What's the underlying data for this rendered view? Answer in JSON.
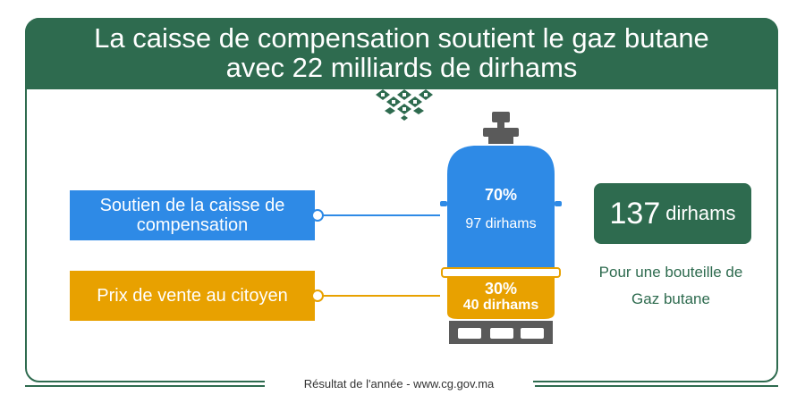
{
  "title": {
    "line1": "La caisse de compensation soutient le gaz butane",
    "line2": "avec 22 milliards de dirhams"
  },
  "labels": {
    "subsidy": "Soutien de la caisse de compensation",
    "citizen_price": "Prix de vente au citoyen"
  },
  "tank": {
    "subsidy_percent": "70%",
    "subsidy_amount": "97 dirhams",
    "citizen_percent": "30%",
    "citizen_amount": "40 dirhams"
  },
  "price": {
    "number": "137",
    "unit": "dirhams",
    "caption_line1": "Pour une bouteille de",
    "caption_line2": "Gaz butane"
  },
  "footer": "Résultat de l'année  - www.cg.gov.ma",
  "colors": {
    "green": "#2e6b4f",
    "blue": "#2e8ae6",
    "orange": "#e8a100",
    "dark_gray": "#5a5a5a"
  }
}
